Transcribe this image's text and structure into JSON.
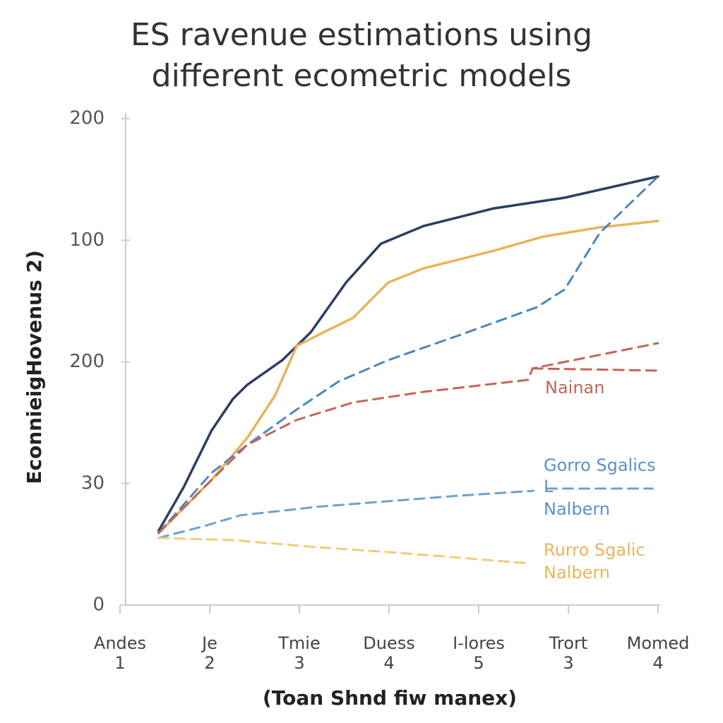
{
  "chart_data": {
    "type": "line",
    "title": [
      "ES ravenue estimations using",
      "different ecometric models"
    ],
    "y_label": "EconnieigHovenus 2)",
    "x_label": "(Toan Shnd fiw manex)",
    "xlim": [
      0,
      6
    ],
    "xticks": [
      {
        "value": 0,
        "label": "Andes\n1"
      },
      {
        "value": 1,
        "label": "Je\n2"
      },
      {
        "value": 2,
        "label": "Tmie\n3"
      },
      {
        "value": 3,
        "label": "Duess\n4"
      },
      {
        "value": 4,
        "label": "I-lores\n5"
      },
      {
        "value": 5,
        "label": "Trort\n3"
      },
      {
        "value": 6,
        "label": "Momed\n4"
      }
    ],
    "ylim": [
      0,
      200
    ],
    "yticks": [
      0,
      {
        "value": 50,
        "label": "30"
      },
      {
        "value": 100,
        "label": "200"
      },
      {
        "value": 150,
        "label": "100"
      },
      200
    ],
    "grid": false,
    "series": [
      {
        "color": "#2c3e66",
        "dash": false,
        "x": [
          0.43,
          0.71,
          1.02,
          1.26,
          1.42,
          1.81,
          2.13,
          2.52,
          2.91,
          3.39,
          4.17,
          4.96,
          6
        ],
        "values": [
          30.5,
          48.5,
          71.7,
          84.8,
          90.6,
          100.7,
          112.3,
          132.6,
          148.6,
          155.9,
          163.1,
          167.5,
          176.2
        ]
      },
      {
        "color": "#e8b45a",
        "dash": false,
        "x": [
          0.43,
          1.02,
          1.42,
          1.73,
          1.97,
          2.28,
          2.6,
          2.99,
          3.39,
          4.17,
          4.72,
          5.35,
          6
        ],
        "values": [
          29.6,
          51.4,
          68.8,
          86.2,
          106.5,
          112.3,
          118.1,
          132.6,
          138.5,
          145.7,
          151.5,
          155.3,
          157.9
        ]
      },
      {
        "color": "#4a87bf",
        "dash": true,
        "x": [
          0.43,
          1.02,
          1.42,
          1.97,
          2.44,
          2.99,
          3.78,
          4.65,
          4.96,
          5.35,
          6
        ],
        "values": [
          29.6,
          54.3,
          65.9,
          80.4,
          92,
          100.7,
          110.9,
          122.5,
          129.8,
          153,
          176.2
        ]
      },
      {
        "color": "#c0675a",
        "dash": true,
        "x": [
          0.43,
          1.02,
          1.42,
          1.97,
          2.6,
          3.39,
          4.55,
          4.6,
          6
        ],
        "values": [
          29.6,
          51.4,
          65.9,
          76.1,
          83.3,
          87.7,
          92.6,
          97.3,
          107.7
        ]
      },
      {
        "color": "#c0675a",
        "dash": true,
        "x": [
          4.6,
          6
        ],
        "values": [
          97.3,
          96.4
        ]
      },
      {
        "color": "#6aa3d0",
        "dash": true,
        "x": [
          0.43,
          0.94,
          1.34,
          2.2,
          2.99,
          3.78,
          4.61
        ],
        "values": [
          27.6,
          32.5,
          36.9,
          40.4,
          42.7,
          45,
          47
        ]
      },
      {
        "color": "#6aa3d0",
        "dash": true,
        "x": [
          4.76,
          5.94
        ],
        "values": [
          47.9,
          47.9
        ]
      },
      {
        "color": "#f0cc7a",
        "dash": true,
        "x": [
          0.43,
          1.26,
          2.2,
          2.99,
          3.78,
          4.57
        ],
        "values": [
          27.6,
          26.7,
          23.8,
          21.8,
          19.5,
          17.1
        ]
      }
    ],
    "annotations": [
      {
        "text": "Nainan",
        "color": "#c0675a"
      },
      {
        "text": "Gorro Sgalics",
        "color": "#5a93c6"
      },
      {
        "text": "L",
        "color": "#5a93c6"
      },
      {
        "text": "Nalbern",
        "color": "#5a93c6"
      },
      {
        "text": "Rurro Sgalic",
        "color": "#e8b45a"
      },
      {
        "text": "Nalbern",
        "color": "#e8b45a"
      }
    ]
  }
}
